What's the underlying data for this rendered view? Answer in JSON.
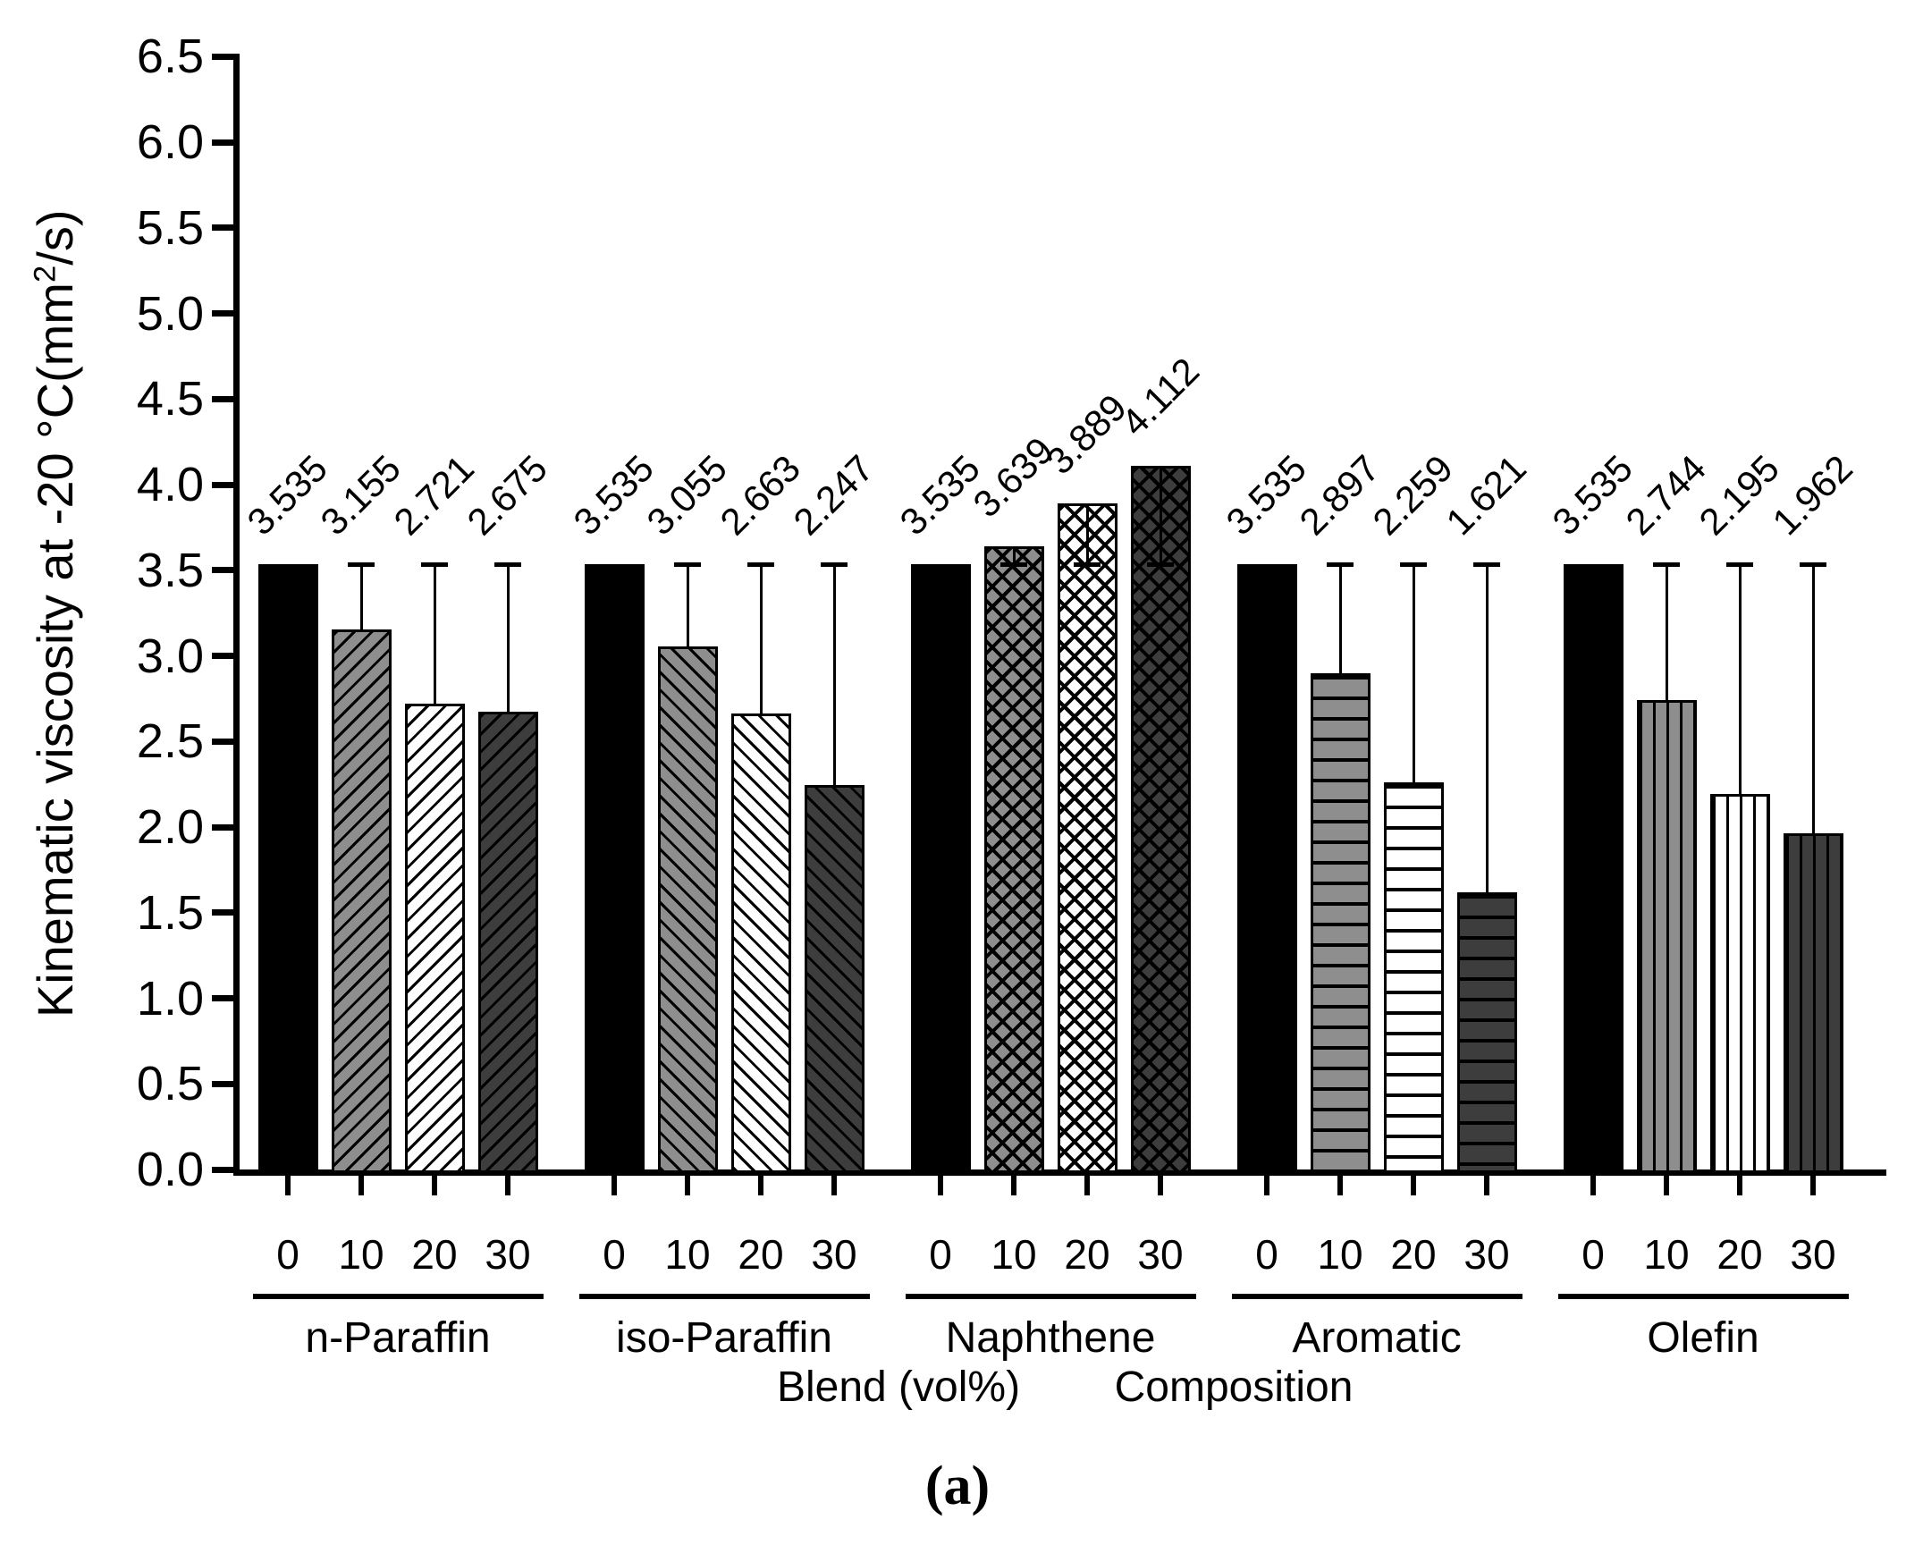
{
  "figure": {
    "caption": "(a)",
    "background": "#ffffff"
  },
  "y_axis": {
    "title_prefix": "Kinematic viscosity at -20 °C(mm",
    "title_sup": "2",
    "title_suffix": "/s)",
    "tick_labels": [
      "0.0",
      "0.5",
      "1.0",
      "1.5",
      "2.0",
      "2.5",
      "3.0",
      "3.5",
      "4.0",
      "4.5",
      "5.0",
      "5.5",
      "6.0",
      "6.5"
    ],
    "min": 0.0,
    "max": 6.5,
    "step": 0.5
  },
  "x_axis": {
    "title_blend": "Blend (vol%)",
    "title_composition": "Composition",
    "blend_levels": [
      "0",
      "10",
      "20",
      "30"
    ]
  },
  "style": {
    "fill_colors_by_blend": [
      "#000000",
      "#8e8e8e",
      "#ffffff",
      "#3d3d3d"
    ],
    "pattern_by_group": [
      "diagonal-up",
      "diagonal-down",
      "crosshatch",
      "horizontal",
      "vertical"
    ],
    "line_color": "#000000"
  },
  "chart_data": {
    "type": "bar",
    "title": "",
    "ylabel": "Kinematic viscosity at -20 °C(mm2/s)",
    "xlabel": "Blend (vol%)   Composition",
    "ylim": [
      0.0,
      6.5
    ],
    "grid": false,
    "legend": "none",
    "reference_value": 3.535,
    "categories": [
      "n-Paraffin",
      "iso-Paraffin",
      "Naphthene",
      "Aromatic",
      "Olefin"
    ],
    "blend_vol_percent": [
      0,
      10,
      20,
      30
    ],
    "series": [
      {
        "name": "n-Paraffin",
        "values": [
          3.535,
          3.155,
          2.721,
          2.675
        ],
        "labels": [
          "3.535",
          "3.155",
          "2.721",
          "2.675"
        ]
      },
      {
        "name": "iso-Paraffin",
        "values": [
          3.535,
          3.055,
          2.663,
          2.247
        ],
        "labels": [
          "3.535",
          "3.055",
          "2.663",
          "2.247"
        ]
      },
      {
        "name": "Naphthene",
        "values": [
          3.535,
          3.639,
          3.889,
          4.112
        ],
        "labels": [
          "3.535",
          "3.639",
          "3.889",
          "4.112"
        ]
      },
      {
        "name": "Aromatic",
        "values": [
          3.535,
          2.897,
          2.259,
          1.621
        ],
        "labels": [
          "3.535",
          "2.897",
          "2.259",
          "1.621"
        ]
      },
      {
        "name": "Olefin",
        "values": [
          3.535,
          2.744,
          2.195,
          1.962
        ],
        "labels": [
          "3.535",
          "2.744",
          "2.195",
          "1.962"
        ]
      }
    ],
    "error_bars": "whisker from each bar top to the 3.535 reference level, cap at reference end"
  }
}
